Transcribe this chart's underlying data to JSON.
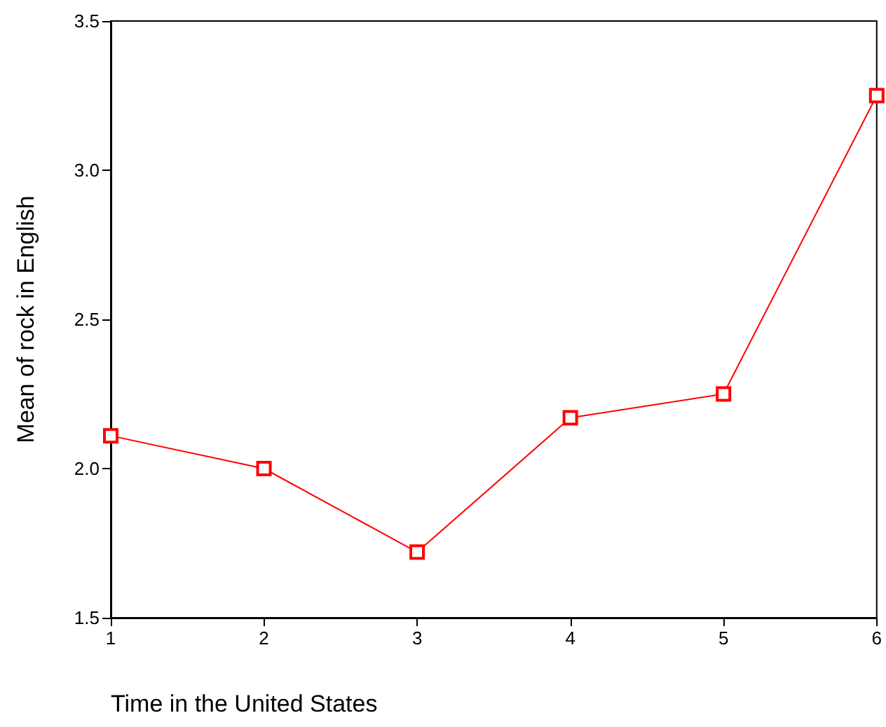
{
  "chart_data": {
    "type": "line",
    "xlabel": "Time in the United States",
    "ylabel": "Mean of rock in English",
    "x": [
      1,
      2,
      3,
      4,
      5,
      6
    ],
    "series": [
      {
        "color": "#ff0000",
        "values": [
          2.11,
          2.0,
          1.72,
          2.17,
          2.25,
          3.25
        ]
      }
    ],
    "xlim": [
      1,
      6
    ],
    "xticks": [
      1,
      2,
      3,
      4,
      5,
      6
    ],
    "ylim": [
      1.5,
      3.5
    ],
    "yticks": [
      {
        "value": 1.5,
        "label": "1.5"
      },
      {
        "value": 2,
        "label": "2.0"
      },
      {
        "value": 2.5,
        "label": "2.5"
      },
      {
        "value": 3,
        "label": "3.0"
      },
      {
        "value": 3.5,
        "label": "3.5"
      }
    ],
    "grid": false,
    "marker": "square",
    "line_style": "solid"
  }
}
